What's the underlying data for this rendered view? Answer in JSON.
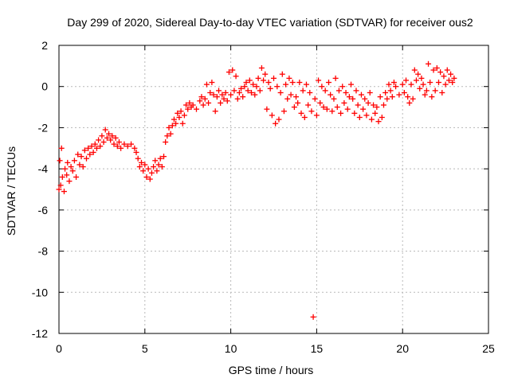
{
  "chart_data": {
    "type": "scatter",
    "title": "Day 299 of 2020, Sidereal Day-to-day VTEC variation (SDTVAR) for receiver ous2",
    "xlabel": "GPS time / hours",
    "ylabel": "SDTVAR / TECUs",
    "xlim": [
      0,
      25
    ],
    "ylim": [
      -12,
      2
    ],
    "x_ticks": [
      0,
      5,
      10,
      15,
      20,
      25
    ],
    "y_ticks": [
      -12,
      -10,
      -8,
      -6,
      -4,
      -2,
      0,
      2
    ],
    "x_tick_labels": [
      "0",
      "5",
      "10",
      "15",
      "20",
      "25"
    ],
    "y_tick_labels": [
      "-12",
      "-10",
      "-8",
      "-6",
      "-4",
      "-2",
      "0",
      "2"
    ],
    "grid": true,
    "marker": "plus",
    "color": "#ff0000",
    "series": [
      {
        "name": "SDTVAR",
        "points": [
          [
            0.0,
            -5.0
          ],
          [
            0.05,
            -3.6
          ],
          [
            0.1,
            -4.8
          ],
          [
            0.15,
            -3.0
          ],
          [
            0.2,
            -4.4
          ],
          [
            0.3,
            -5.1
          ],
          [
            0.35,
            -4.0
          ],
          [
            0.45,
            -4.3
          ],
          [
            0.5,
            -3.7
          ],
          [
            0.6,
            -4.6
          ],
          [
            0.7,
            -3.9
          ],
          [
            0.8,
            -4.1
          ],
          [
            0.9,
            -3.6
          ],
          [
            1.0,
            -4.4
          ],
          [
            1.1,
            -3.3
          ],
          [
            1.2,
            -3.8
          ],
          [
            1.3,
            -3.4
          ],
          [
            1.4,
            -3.9
          ],
          [
            1.5,
            -3.1
          ],
          [
            1.6,
            -3.5
          ],
          [
            1.7,
            -3.0
          ],
          [
            1.8,
            -3.3
          ],
          [
            1.9,
            -2.9
          ],
          [
            2.0,
            -3.2
          ],
          [
            2.1,
            -2.8
          ],
          [
            2.2,
            -3.0
          ],
          [
            2.3,
            -2.6
          ],
          [
            2.4,
            -2.9
          ],
          [
            2.5,
            -2.4
          ],
          [
            2.6,
            -2.7
          ],
          [
            2.7,
            -2.1
          ],
          [
            2.8,
            -2.5
          ],
          [
            2.9,
            -2.3
          ],
          [
            3.0,
            -2.6
          ],
          [
            3.1,
            -2.4
          ],
          [
            3.2,
            -2.8
          ],
          [
            3.3,
            -2.5
          ],
          [
            3.4,
            -2.9
          ],
          [
            3.5,
            -2.7
          ],
          [
            3.6,
            -3.0
          ],
          [
            3.8,
            -2.8
          ],
          [
            4.0,
            -2.9
          ],
          [
            4.2,
            -2.8
          ],
          [
            4.4,
            -3.0
          ],
          [
            4.5,
            -3.2
          ],
          [
            4.6,
            -3.5
          ],
          [
            4.7,
            -3.9
          ],
          [
            4.8,
            -3.7
          ],
          [
            4.9,
            -4.1
          ],
          [
            5.0,
            -3.8
          ],
          [
            5.1,
            -4.4
          ],
          [
            5.2,
            -4.0
          ],
          [
            5.3,
            -4.5
          ],
          [
            5.4,
            -4.2
          ],
          [
            5.5,
            -3.9
          ],
          [
            5.6,
            -3.6
          ],
          [
            5.7,
            -4.1
          ],
          [
            5.8,
            -3.8
          ],
          [
            5.9,
            -3.5
          ],
          [
            6.0,
            -3.9
          ],
          [
            6.1,
            -3.4
          ],
          [
            6.2,
            -2.7
          ],
          [
            6.3,
            -2.4
          ],
          [
            6.4,
            -2.0
          ],
          [
            6.5,
            -2.3
          ],
          [
            6.6,
            -1.9
          ],
          [
            6.7,
            -1.6
          ],
          [
            6.8,
            -1.8
          ],
          [
            6.9,
            -1.3
          ],
          [
            7.0,
            -1.5
          ],
          [
            7.1,
            -1.2
          ],
          [
            7.2,
            -1.8
          ],
          [
            7.3,
            -1.4
          ],
          [
            7.4,
            -0.9
          ],
          [
            7.5,
            -1.1
          ],
          [
            7.6,
            -0.8
          ],
          [
            7.7,
            -1.0
          ],
          [
            7.8,
            -0.9
          ],
          [
            8.0,
            -1.1
          ],
          [
            8.2,
            -0.7
          ],
          [
            8.3,
            -0.5
          ],
          [
            8.4,
            -0.9
          ],
          [
            8.5,
            -0.6
          ],
          [
            8.6,
            0.1
          ],
          [
            8.7,
            -0.8
          ],
          [
            8.8,
            -0.3
          ],
          [
            8.9,
            0.2
          ],
          [
            9.0,
            -0.4
          ],
          [
            9.1,
            -1.2
          ],
          [
            9.2,
            -0.5
          ],
          [
            9.3,
            -0.2
          ],
          [
            9.4,
            -0.8
          ],
          [
            9.5,
            -0.4
          ],
          [
            9.6,
            -0.6
          ],
          [
            9.7,
            -0.3
          ],
          [
            9.8,
            -0.7
          ],
          [
            9.9,
            0.7
          ],
          [
            10.0,
            -0.4
          ],
          [
            10.1,
            0.8
          ],
          [
            10.2,
            -0.2
          ],
          [
            10.3,
            0.5
          ],
          [
            10.4,
            -0.6
          ],
          [
            10.5,
            -0.3
          ],
          [
            10.6,
            -0.1
          ],
          [
            10.7,
            -0.5
          ],
          [
            10.8,
            0.0
          ],
          [
            10.9,
            0.2
          ],
          [
            11.0,
            -0.2
          ],
          [
            11.1,
            0.3
          ],
          [
            11.2,
            -0.3
          ],
          [
            11.3,
            0.1
          ],
          [
            11.4,
            -0.4
          ],
          [
            11.5,
            0.0
          ],
          [
            11.6,
            0.4
          ],
          [
            11.7,
            -0.2
          ],
          [
            11.8,
            0.9
          ],
          [
            11.9,
            0.3
          ],
          [
            12.0,
            0.6
          ],
          [
            12.1,
            -1.1
          ],
          [
            12.2,
            0.2
          ],
          [
            12.3,
            -0.1
          ],
          [
            12.4,
            -1.4
          ],
          [
            12.5,
            0.4
          ],
          [
            12.6,
            -1.8
          ],
          [
            12.7,
            0.0
          ],
          [
            12.8,
            -1.6
          ],
          [
            12.9,
            -0.3
          ],
          [
            13.0,
            0.6
          ],
          [
            13.1,
            -1.2
          ],
          [
            13.2,
            0.1
          ],
          [
            13.3,
            -0.6
          ],
          [
            13.4,
            0.4
          ],
          [
            13.5,
            -0.4
          ],
          [
            13.6,
            0.2
          ],
          [
            13.7,
            -1.0
          ],
          [
            13.8,
            -0.5
          ],
          [
            13.9,
            -0.8
          ],
          [
            14.0,
            0.2
          ],
          [
            14.1,
            -1.3
          ],
          [
            14.2,
            -0.2
          ],
          [
            14.3,
            -1.5
          ],
          [
            14.4,
            0.1
          ],
          [
            14.5,
            -0.9
          ],
          [
            14.6,
            -0.3
          ],
          [
            14.7,
            -1.2
          ],
          [
            14.8,
            -11.2
          ],
          [
            14.9,
            -0.6
          ],
          [
            15.0,
            -1.4
          ],
          [
            15.1,
            0.3
          ],
          [
            15.2,
            -0.8
          ],
          [
            15.3,
            0.0
          ],
          [
            15.4,
            -1.0
          ],
          [
            15.5,
            -0.2
          ],
          [
            15.6,
            -1.1
          ],
          [
            15.7,
            0.2
          ],
          [
            15.8,
            -0.4
          ],
          [
            15.9,
            -1.2
          ],
          [
            16.0,
            -0.6
          ],
          [
            16.1,
            0.4
          ],
          [
            16.2,
            -1.0
          ],
          [
            16.3,
            -0.2
          ],
          [
            16.4,
            -1.3
          ],
          [
            16.5,
            0.0
          ],
          [
            16.6,
            -0.8
          ],
          [
            16.7,
            -0.3
          ],
          [
            16.8,
            -1.1
          ],
          [
            16.9,
            -0.5
          ],
          [
            17.0,
            0.1
          ],
          [
            17.1,
            -0.6
          ],
          [
            17.2,
            -1.3
          ],
          [
            17.3,
            -0.2
          ],
          [
            17.4,
            -0.9
          ],
          [
            17.5,
            -1.5
          ],
          [
            17.6,
            -0.4
          ],
          [
            17.7,
            -1.1
          ],
          [
            17.8,
            -0.6
          ],
          [
            17.9,
            -1.4
          ],
          [
            18.0,
            -0.8
          ],
          [
            18.1,
            -0.3
          ],
          [
            18.2,
            -1.6
          ],
          [
            18.3,
            -0.9
          ],
          [
            18.4,
            -1.3
          ],
          [
            18.5,
            -1.0
          ],
          [
            18.6,
            -1.7
          ],
          [
            18.7,
            -0.5
          ],
          [
            18.8,
            -1.5
          ],
          [
            18.9,
            -0.9
          ],
          [
            19.0,
            -0.3
          ],
          [
            19.1,
            -0.6
          ],
          [
            19.2,
            0.1
          ],
          [
            19.3,
            -0.2
          ],
          [
            19.4,
            -0.5
          ],
          [
            19.5,
            0.2
          ],
          [
            19.6,
            0.0
          ],
          [
            19.8,
            -0.4
          ],
          [
            20.0,
            0.1
          ],
          [
            20.1,
            -0.3
          ],
          [
            20.2,
            0.3
          ],
          [
            20.3,
            -0.5
          ],
          [
            20.4,
            -0.8
          ],
          [
            20.5,
            0.1
          ],
          [
            20.6,
            -0.6
          ],
          [
            20.7,
            0.8
          ],
          [
            20.8,
            0.3
          ],
          [
            20.9,
            0.6
          ],
          [
            21.0,
            -0.1
          ],
          [
            21.1,
            0.4
          ],
          [
            21.2,
            0.1
          ],
          [
            21.3,
            -0.4
          ],
          [
            21.4,
            -0.2
          ],
          [
            21.5,
            1.1
          ],
          [
            21.6,
            0.2
          ],
          [
            21.7,
            -0.5
          ],
          [
            21.8,
            0.8
          ],
          [
            21.9,
            -0.2
          ],
          [
            22.0,
            0.9
          ],
          [
            22.1,
            0.2
          ],
          [
            22.2,
            0.7
          ],
          [
            22.3,
            -0.3
          ],
          [
            22.4,
            0.5
          ],
          [
            22.5,
            0.1
          ],
          [
            22.6,
            0.8
          ],
          [
            22.7,
            0.3
          ],
          [
            22.8,
            0.6
          ],
          [
            22.9,
            0.2
          ],
          [
            23.0,
            0.4
          ]
        ]
      }
    ]
  }
}
